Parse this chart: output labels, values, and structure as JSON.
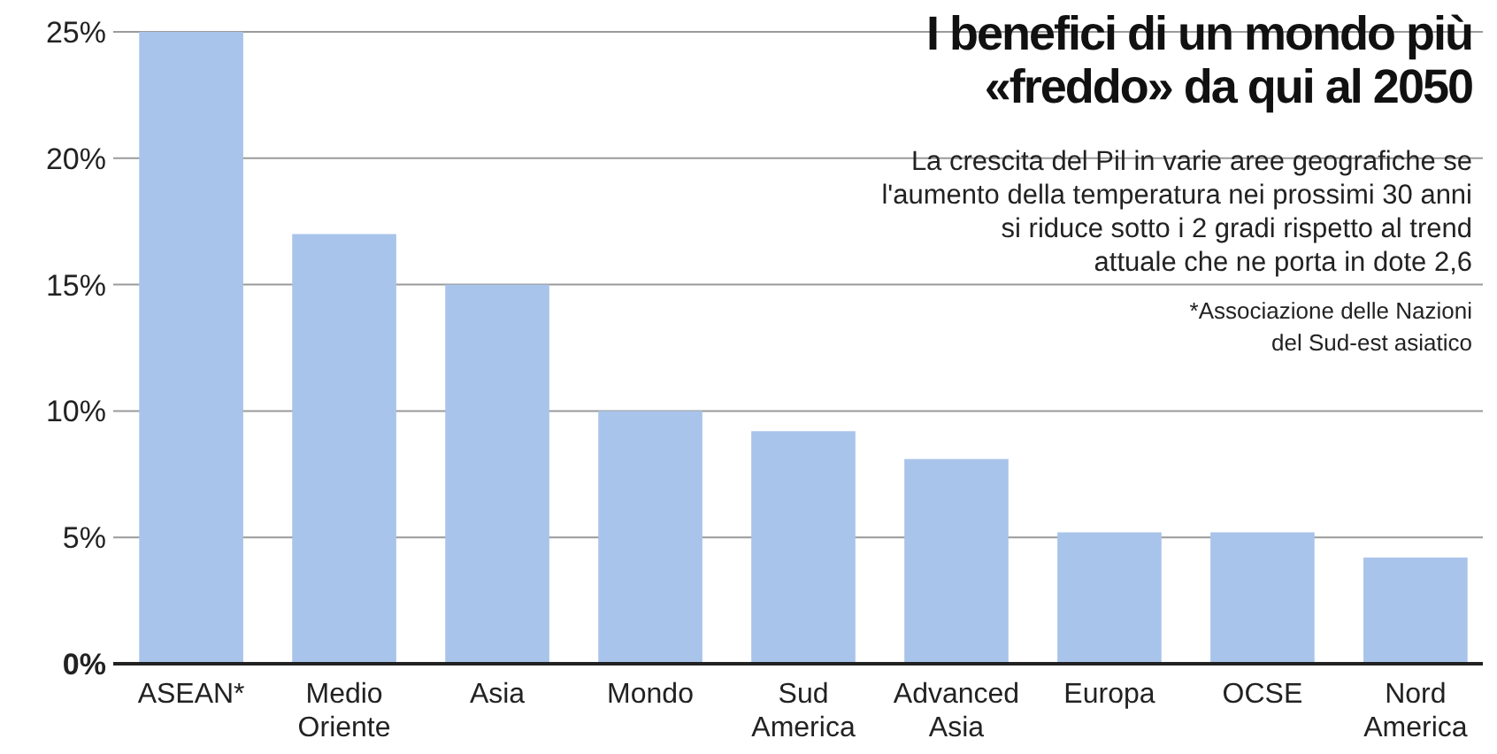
{
  "chart_data": {
    "type": "bar",
    "title": "I benefici di un mondo più «freddo» da qui al 2050",
    "subtitle": "La crescita del Pil in varie aree geografiche se l'aumento della temperatura nei prossimi 30 anni si riduce sotto i 2 gradi rispetto al trend attuale che ne porta in dote 2,6",
    "annotations": [
      "*Associazione delle Nazioni del Sud-est asiatico"
    ],
    "categories": [
      "ASEAN*",
      "Medio Oriente",
      "Asia",
      "Mondo",
      "Sud America",
      "Advanced Asia",
      "Europa",
      "OCSE",
      "Nord America"
    ],
    "values": [
      25,
      17,
      15,
      10,
      9.2,
      8.1,
      5.2,
      5.2,
      4.2
    ],
    "color": "#a9c4ea",
    "ylim": [
      0,
      25
    ],
    "yticks": [
      {
        "value": 0,
        "label": "0%"
      },
      {
        "value": 5,
        "label": "5%"
      },
      {
        "value": 10,
        "label": "10%"
      },
      {
        "value": 15,
        "label": "15%"
      },
      {
        "value": 20,
        "label": "20%"
      },
      {
        "value": 25,
        "label": "25%"
      }
    ],
    "grid": "y"
  }
}
